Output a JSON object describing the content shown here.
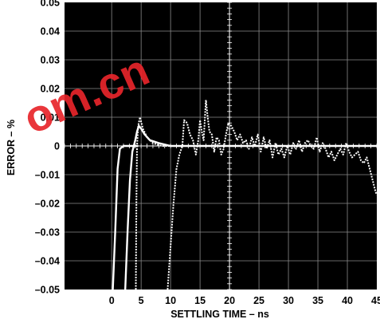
{
  "watermark": {
    "text": "om.cn",
    "color": "#e8252b"
  },
  "chart_data": {
    "type": "line",
    "title": "",
    "xlabel": "SETTLING TIME – ns",
    "ylabel": "ERROR – %",
    "xlim": [
      -8,
      45
    ],
    "ylim": [
      -0.05,
      0.05
    ],
    "x_ticks": [
      0,
      5,
      10,
      15,
      20,
      25,
      30,
      35,
      40,
      45
    ],
    "x_tick_labels": [
      "0",
      "5",
      "10",
      "15",
      "20",
      "25",
      "30",
      "35",
      "40",
      "45"
    ],
    "y_ticks": [
      0.05,
      0.04,
      0.03,
      0.02,
      0.01,
      0,
      -0.01,
      -0.02,
      -0.03,
      -0.04,
      -0.05
    ],
    "y_tick_labels": [
      "0.05",
      "0.04",
      "0.03",
      "0.02",
      "0.01",
      "0",
      "–0.01",
      "–0.02",
      "–0.03",
      "–0.04",
      "–0.05"
    ],
    "grid": true,
    "background": "#000000",
    "trace_color": "#ffffff",
    "series": [
      {
        "style": "solid",
        "points": [
          [
            0.2,
            -0.05
          ],
          [
            0.6,
            -0.03
          ],
          [
            1.0,
            -0.008
          ],
          [
            1.4,
            -0.001
          ],
          [
            2.0,
            0.0
          ],
          [
            3.0,
            0.0
          ],
          [
            4.5,
            0.0
          ]
        ]
      },
      {
        "style": "solid",
        "points": [
          [
            2.3,
            -0.05
          ],
          [
            2.7,
            -0.03
          ],
          [
            3.1,
            -0.012
          ],
          [
            3.5,
            -0.002
          ],
          [
            4.0,
            0.002
          ],
          [
            4.3,
            0.005
          ],
          [
            4.6,
            0.007
          ],
          [
            5.0,
            0.006
          ],
          [
            5.6,
            0.004
          ],
          [
            6.5,
            0.002
          ],
          [
            8.0,
            0.001
          ],
          [
            10.0,
            0.0
          ],
          [
            13.0,
            0.0
          ],
          [
            17.0,
            0.0
          ],
          [
            22.0,
            0.0
          ],
          [
            28.0,
            0.0
          ],
          [
            35.0,
            0.0
          ],
          [
            41.0,
            0.0
          ],
          [
            45.0,
            0.0
          ]
        ]
      },
      {
        "style": "dotted",
        "points": [
          [
            4.1,
            -0.05
          ],
          [
            4.2,
            -0.02
          ],
          [
            4.3,
            0.0
          ],
          [
            4.5,
            0.007
          ],
          [
            4.8,
            0.01
          ],
          [
            5.3,
            0.006
          ],
          [
            6.0,
            0.003
          ],
          [
            7.0,
            0.001
          ],
          [
            8.5,
            0.0
          ],
          [
            10.0,
            0.0
          ],
          [
            11.0,
            0.0
          ]
        ]
      },
      {
        "style": "dotted",
        "points": [
          [
            9.5,
            -0.05
          ],
          [
            10.0,
            -0.035
          ],
          [
            10.5,
            -0.02
          ],
          [
            11.0,
            -0.008
          ],
          [
            11.5,
            -0.003
          ],
          [
            12.0,
            0.0
          ],
          [
            12.3,
            0.009
          ],
          [
            12.8,
            0.008
          ],
          [
            13.3,
            0.004
          ],
          [
            13.8,
            0.002
          ],
          [
            14.3,
            -0.003
          ],
          [
            14.7,
            0.002
          ],
          [
            15.0,
            0.009
          ],
          [
            15.3,
            0.005
          ],
          [
            15.6,
            0.002
          ],
          [
            16.0,
            0.016
          ],
          [
            16.3,
            0.01
          ],
          [
            16.6,
            0.005
          ],
          [
            17.0,
            0.004
          ],
          [
            17.4,
            -0.002
          ],
          [
            17.8,
            0.003
          ],
          [
            18.2,
            0.002
          ],
          [
            18.6,
            -0.003
          ],
          [
            19.0,
            -0.001
          ],
          [
            19.4,
            0.004
          ],
          [
            19.8,
            0.008
          ],
          [
            20.3,
            0.007
          ],
          [
            20.8,
            0.005
          ],
          [
            21.3,
            0.002
          ],
          [
            21.8,
            0.004
          ],
          [
            22.3,
            0.001
          ],
          [
            22.8,
            0.002
          ],
          [
            23.3,
            -0.001
          ],
          [
            23.8,
            0.003
          ],
          [
            24.3,
            0.0
          ],
          [
            24.8,
            0.004
          ],
          [
            25.3,
            -0.002
          ],
          [
            25.8,
            0.003
          ],
          [
            26.3,
            -0.001
          ],
          [
            26.8,
            0.002
          ],
          [
            27.3,
            -0.004
          ],
          [
            27.8,
            0.001
          ],
          [
            28.3,
            -0.003
          ],
          [
            28.8,
            -0.001
          ],
          [
            29.3,
            -0.004
          ],
          [
            29.8,
            0.0
          ],
          [
            30.3,
            -0.003
          ],
          [
            30.8,
            0.001
          ],
          [
            31.3,
            -0.001
          ],
          [
            31.8,
            0.002
          ],
          [
            32.3,
            -0.002
          ],
          [
            32.8,
            0.001
          ],
          [
            33.3,
            0.002
          ],
          [
            33.8,
            0.0
          ],
          [
            34.3,
            -0.001
          ],
          [
            34.8,
            0.003
          ],
          [
            35.3,
            -0.002
          ],
          [
            35.8,
            0.001
          ],
          [
            36.3,
            -0.001
          ],
          [
            36.8,
            -0.004
          ],
          [
            37.3,
            -0.002
          ],
          [
            37.8,
            -0.005
          ],
          [
            38.3,
            -0.003
          ],
          [
            38.8,
            -0.001
          ],
          [
            39.3,
            -0.003
          ],
          [
            39.8,
            0.001
          ],
          [
            40.3,
            -0.002
          ],
          [
            40.8,
            -0.004
          ],
          [
            41.3,
            -0.003
          ],
          [
            41.8,
            -0.002
          ],
          [
            42.3,
            -0.005
          ],
          [
            42.8,
            -0.006
          ],
          [
            43.3,
            -0.004
          ],
          [
            43.8,
            -0.008
          ],
          [
            44.3,
            -0.012
          ],
          [
            44.8,
            -0.016
          ],
          [
            45.0,
            -0.017
          ]
        ]
      }
    ]
  }
}
